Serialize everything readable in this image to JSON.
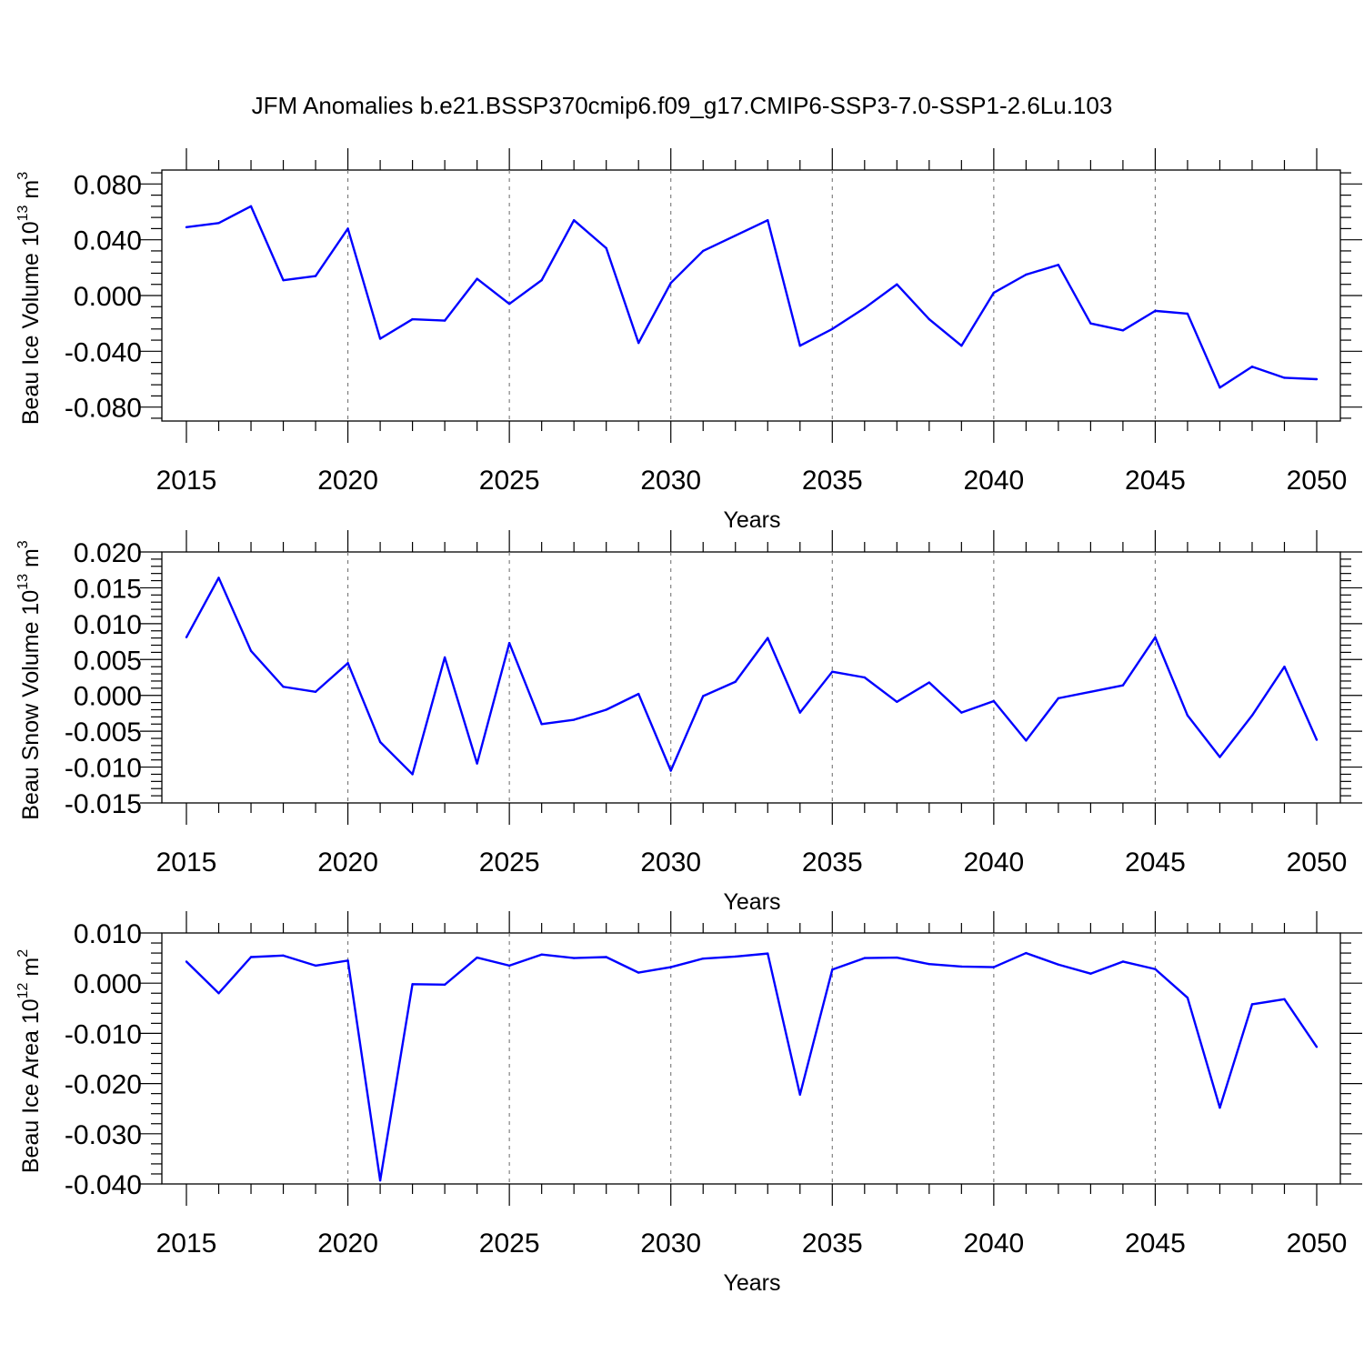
{
  "title": "JFM Anomalies b.e21.BSSP370cmip6.f09_g17.CMIP6-SSP3-7.0-SSP1-2.6Lu.103",
  "line_color": "#0000ff",
  "chart_data": [
    {
      "type": "line",
      "ylabel": "Beau Ice Volume 10",
      "ylabel_exp": "13",
      "ylabel_unit": " m",
      "ylabel_unit_exp": "3",
      "xlabel": "Years",
      "xlim": [
        2015,
        2050
      ],
      "ylim": [
        -0.09,
        0.09
      ],
      "yticks": [
        -0.08,
        -0.04,
        0.0,
        0.04,
        0.08
      ],
      "ytick_labels": [
        "-0.080",
        "-0.040",
        "0.000",
        "0.040",
        "0.080"
      ],
      "xticks": [
        2015,
        2020,
        2025,
        2030,
        2035,
        2040,
        2045,
        2050
      ],
      "xtick_labels": [
        "2015",
        "2020",
        "2025",
        "2030",
        "2035",
        "2040",
        "2045",
        "2050"
      ],
      "x": [
        2015,
        2016,
        2017,
        2018,
        2019,
        2020,
        2021,
        2022,
        2023,
        2024,
        2025,
        2026,
        2027,
        2028,
        2029,
        2030,
        2031,
        2032,
        2033,
        2034,
        2035,
        2036,
        2037,
        2038,
        2039,
        2040,
        2041,
        2042,
        2043,
        2044,
        2045,
        2046,
        2047,
        2048,
        2049,
        2050
      ],
      "values": [
        0.049,
        0.052,
        0.064,
        0.011,
        0.014,
        0.048,
        -0.031,
        -0.017,
        -0.018,
        0.012,
        -0.006,
        0.011,
        0.054,
        0.034,
        -0.034,
        0.009,
        0.032,
        0.043,
        0.054,
        -0.036,
        -0.024,
        -0.009,
        0.008,
        -0.017,
        -0.036,
        0.002,
        0.015,
        0.022,
        -0.02,
        -0.025,
        -0.011,
        -0.013,
        -0.066,
        -0.051,
        -0.059,
        -0.06
      ]
    },
    {
      "type": "line",
      "ylabel": "Beau Snow Volume 10",
      "ylabel_exp": "13",
      "ylabel_unit": " m",
      "ylabel_unit_exp": "3",
      "xlabel": "Years",
      "xlim": [
        2015,
        2050
      ],
      "ylim": [
        -0.015,
        0.02
      ],
      "yticks": [
        -0.015,
        -0.01,
        -0.005,
        0.0,
        0.005,
        0.01,
        0.015,
        0.02
      ],
      "ytick_labels": [
        "-0.015",
        "-0.010",
        "-0.005",
        "0.000",
        "0.005",
        "0.010",
        "0.015",
        "0.020"
      ],
      "xticks": [
        2015,
        2020,
        2025,
        2030,
        2035,
        2040,
        2045,
        2050
      ],
      "xtick_labels": [
        "2015",
        "2020",
        "2025",
        "2030",
        "2035",
        "2040",
        "2045",
        "2050"
      ],
      "x": [
        2015,
        2016,
        2017,
        2018,
        2019,
        2020,
        2021,
        2022,
        2023,
        2024,
        2025,
        2026,
        2027,
        2028,
        2029,
        2030,
        2031,
        2032,
        2033,
        2034,
        2035,
        2036,
        2037,
        2038,
        2039,
        2040,
        2041,
        2042,
        2043,
        2044,
        2045,
        2046,
        2047,
        2048,
        2049,
        2050
      ],
      "values": [
        0.0081,
        0.0164,
        0.0062,
        0.0012,
        0.0005,
        0.0045,
        -0.0065,
        -0.011,
        0.0053,
        -0.0095,
        0.0073,
        -0.004,
        -0.0034,
        -0.002,
        0.0002,
        -0.0105,
        -0.0001,
        0.0019,
        0.008,
        -0.0024,
        0.0033,
        0.0025,
        -0.0009,
        0.0018,
        -0.0024,
        -0.0008,
        -0.0063,
        -0.0004,
        0.0005,
        0.0014,
        0.0081,
        -0.0028,
        -0.0086,
        -0.0028,
        0.004,
        -0.0062
      ]
    },
    {
      "type": "line",
      "ylabel": "Beau Ice Area 10",
      "ylabel_exp": "12",
      "ylabel_unit": " m",
      "ylabel_unit_exp": "2",
      "xlabel": "Years",
      "xlim": [
        2015,
        2050
      ],
      "ylim": [
        -0.04,
        0.01
      ],
      "yticks": [
        -0.04,
        -0.03,
        -0.02,
        -0.01,
        0.0,
        0.01
      ],
      "ytick_labels": [
        "-0.040",
        "-0.030",
        "-0.020",
        "-0.010",
        "0.000",
        "0.010"
      ],
      "xticks": [
        2015,
        2020,
        2025,
        2030,
        2035,
        2040,
        2045,
        2050
      ],
      "xtick_labels": [
        "2015",
        "2020",
        "2025",
        "2030",
        "2035",
        "2040",
        "2045",
        "2050"
      ],
      "x": [
        2015,
        2016,
        2017,
        2018,
        2019,
        2020,
        2021,
        2022,
        2023,
        2024,
        2025,
        2026,
        2027,
        2028,
        2029,
        2030,
        2031,
        2032,
        2033,
        2034,
        2035,
        2036,
        2037,
        2038,
        2039,
        2040,
        2041,
        2042,
        2043,
        2044,
        2045,
        2046,
        2047,
        2048,
        2049,
        2050
      ],
      "values": [
        0.0043,
        -0.002,
        0.0052,
        0.0055,
        0.0035,
        0.0045,
        -0.0393,
        -0.0002,
        -0.0003,
        0.0051,
        0.0035,
        0.0057,
        0.005,
        0.0052,
        0.0021,
        0.0032,
        0.0049,
        0.0053,
        0.0059,
        -0.0222,
        0.0027,
        0.005,
        0.0051,
        0.0038,
        0.0033,
        0.0032,
        0.006,
        0.0037,
        0.0019,
        0.0043,
        0.0028,
        -0.0029,
        -0.0248,
        -0.0042,
        -0.0032,
        -0.0127
      ]
    }
  ]
}
